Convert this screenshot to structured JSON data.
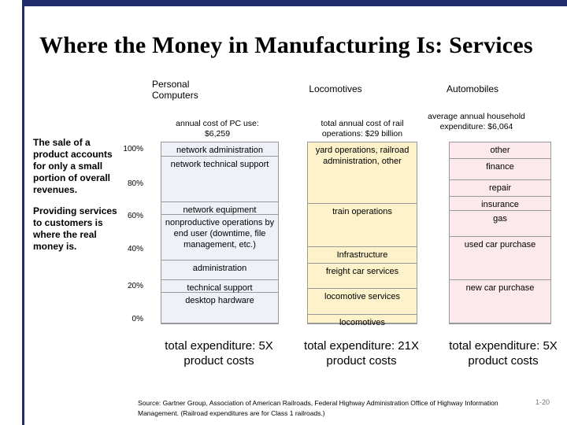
{
  "title": "Where the Money in Manufacturing Is: Services",
  "side_text": {
    "p1": "The sale of a product accounts for only a small portion of overall revenues.",
    "p2": "Providing services to customers is where the real money is."
  },
  "source": "Source: Gartner Group, Association of American Railroads, Federal Highway Administration Office of Highway Information Management. (Railroad expenditures are for Class 1 railroads.)",
  "page_number": "1-20",
  "chart_data": {
    "type": "bar",
    "subtype": "stacked-100-percent",
    "yticks": [
      "100%",
      "80%",
      "60%",
      "40%",
      "20%",
      "0%"
    ],
    "ylim": [
      0,
      100
    ],
    "columns": [
      {
        "name": "Personal Computers",
        "subtitle": "annual cost of PC use: $6,259",
        "total": "total expenditure: 5X product costs",
        "color": "#eef1f8",
        "segments": [
          {
            "label": "desktop hardware",
            "value": 17
          },
          {
            "label": "technical support",
            "value": 7
          },
          {
            "label": "administration",
            "value": 11
          },
          {
            "label": "nonproductive operations by end user (downtime, file management, etc.)",
            "value": 25
          },
          {
            "label": "network equipment",
            "value": 7
          },
          {
            "label": "network technical support",
            "value": 25
          },
          {
            "label": "network administration",
            "value": 8
          }
        ]
      },
      {
        "name": "Locomotives",
        "subtitle": "total annual cost of rail operations: $29 billion",
        "total": "total expenditure: 21X product costs",
        "color": "#fdf2c9",
        "segments": [
          {
            "label": "locomotives",
            "value": 5
          },
          {
            "label": "locomotive services",
            "value": 14
          },
          {
            "label": "freight car services",
            "value": 14
          },
          {
            "label": "Infrastructure",
            "value": 9
          },
          {
            "label": "train operations",
            "value": 24
          },
          {
            "label": "yard operations, railroad administration, other",
            "value": 34
          }
        ]
      },
      {
        "name": "Automobiles",
        "subtitle": "average annual household expenditure: $6,064",
        "total": "total expenditure: 5X product costs",
        "color": "#fbe9ec",
        "segments": [
          {
            "label": "new car purchase",
            "value": 24
          },
          {
            "label": "used car purchase",
            "value": 24
          },
          {
            "label": "gas",
            "value": 14
          },
          {
            "label": "insurance",
            "value": 8
          },
          {
            "label": "repair",
            "value": 9
          },
          {
            "label": "finance",
            "value": 12
          },
          {
            "label": "other",
            "value": 9
          }
        ]
      }
    ]
  }
}
